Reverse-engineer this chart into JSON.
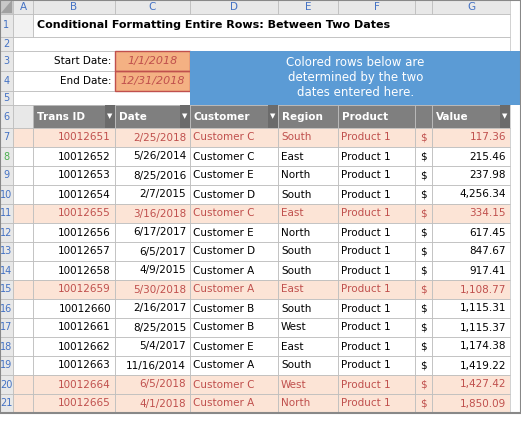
{
  "title": "Conditional Formatting Entire Rows: Between Two Dates",
  "start_date": "1/1/2018",
  "end_date": "12/31/2018",
  "callout_text": "Colored rows below are\ndetermined by the two\ndates entered here.",
  "data": [
    [
      10012651,
      "2/25/2018",
      "Customer C",
      "South",
      "Product 1",
      "$",
      "117.36",
      true
    ],
    [
      10012652,
      "5/26/2014",
      "Customer C",
      "East",
      "Product 1",
      "$",
      "215.46",
      false
    ],
    [
      10012653,
      "8/25/2016",
      "Customer E",
      "North",
      "Product 1",
      "$",
      "237.98",
      false
    ],
    [
      10012654,
      "2/7/2015",
      "Customer D",
      "South",
      "Product 1",
      "$",
      "4,256.34",
      false
    ],
    [
      10012655,
      "3/16/2018",
      "Customer C",
      "East",
      "Product 1",
      "$",
      "334.15",
      true
    ],
    [
      10012656,
      "6/17/2017",
      "Customer E",
      "North",
      "Product 1",
      "$",
      "617.45",
      false
    ],
    [
      10012657,
      "6/5/2017",
      "Customer D",
      "South",
      "Product 1",
      "$",
      "847.67",
      false
    ],
    [
      10012658,
      "4/9/2015",
      "Customer A",
      "South",
      "Product 1",
      "$",
      "917.41",
      false
    ],
    [
      10012659,
      "5/30/2018",
      "Customer A",
      "East",
      "Product 1",
      "$",
      "1,108.77",
      true
    ],
    [
      10012660,
      "2/16/2017",
      "Customer B",
      "South",
      "Product 1",
      "$",
      "1,115.31",
      false
    ],
    [
      10012661,
      "8/25/2015",
      "Customer B",
      "West",
      "Product 1",
      "$",
      "1,115.37",
      false
    ],
    [
      10012662,
      "5/4/2017",
      "Customer E",
      "East",
      "Product 1",
      "$",
      "1,174.38",
      false
    ],
    [
      10012663,
      "11/16/2014",
      "Customer A",
      "South",
      "Product 1",
      "$",
      "1,419.22",
      false
    ],
    [
      10012664,
      "6/5/2018",
      "Customer C",
      "West",
      "Product 1",
      "$",
      "1,427.42",
      true
    ],
    [
      10012665,
      "4/1/2018",
      "Customer A",
      "North",
      "Product 1",
      "$",
      "1,850.09",
      true
    ]
  ],
  "highlight_bg": "#FCE4D6",
  "highlight_fg": "#C0504D",
  "normal_bg": "#FFFFFF",
  "normal_fg": "#000000",
  "date_cell_bg": "#F4B183",
  "date_cell_fg": "#C0504D",
  "header_bg": "#808080",
  "header_fg": "#FFFFFF",
  "callout_bg": "#5B9BD5",
  "callout_fg": "#FFFFFF",
  "grid_color": "#D3D3D3",
  "rownumber_bg": "#E8E8E8",
  "rownumber_fg": "#4472C4",
  "colheader_bg": "#E8E8E8",
  "colheader_fg": "#4472C4",
  "corner_bg": "#C8C8C8"
}
